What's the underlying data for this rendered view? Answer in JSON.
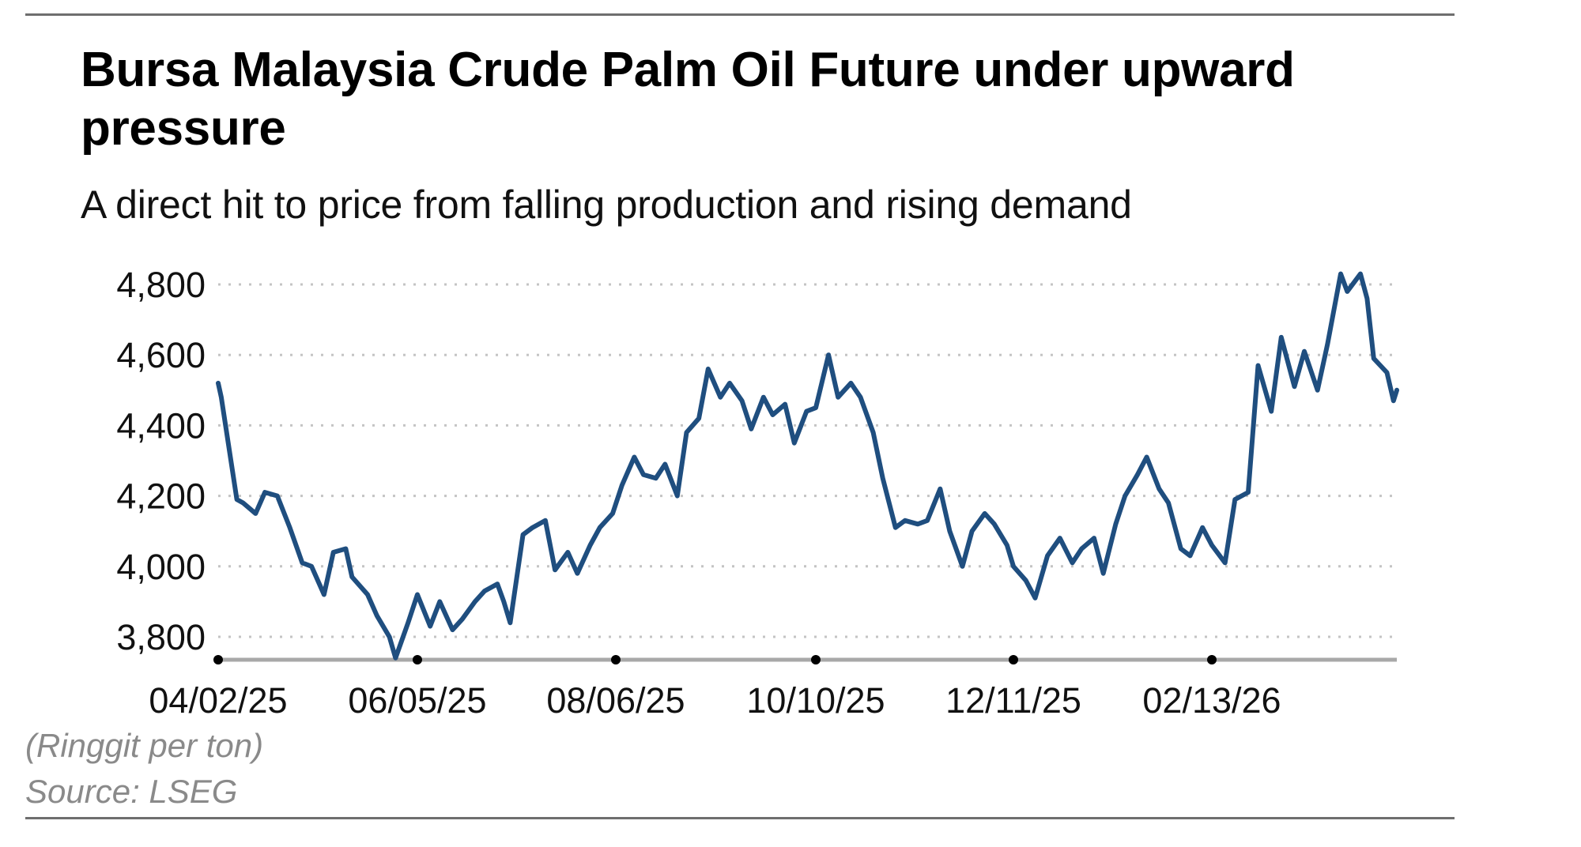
{
  "chart_data": {
    "type": "line",
    "title": "Bursa Malaysia Crude Palm Oil Future under upward pressure",
    "subtitle": "A direct hit to price from falling production and rising demand",
    "xlabel": "",
    "ylabel": "(Ringgit per ton)",
    "source": "Source: LSEG",
    "ylim": [
      3730,
      4840
    ],
    "grid": "horizontal dotted",
    "legend": "none",
    "line_color": "#1f4e7f",
    "y_ticks": [
      {
        "value": 4800,
        "label": "4,800"
      },
      {
        "value": 4600,
        "label": "4,600"
      },
      {
        "value": 4400,
        "label": "4,400"
      },
      {
        "value": 4200,
        "label": "4,200"
      },
      {
        "value": 4000,
        "label": "4,000"
      },
      {
        "value": 3800,
        "label": "3,800"
      }
    ],
    "x_ticks": [
      "04/02/25",
      "06/05/25",
      "08/06/25",
      "10/10/25",
      "12/11/25",
      "02/13/26"
    ],
    "series": [
      {
        "name": "Crude Palm Oil Future",
        "points": [
          {
            "date": "04/02/25",
            "value": 4520
          },
          {
            "date": "04/03/25",
            "value": 4480
          },
          {
            "date": "04/08/25",
            "value": 4190
          },
          {
            "date": "04/10/25",
            "value": 4180
          },
          {
            "date": "04/14/25",
            "value": 4150
          },
          {
            "date": "04/17/25",
            "value": 4210
          },
          {
            "date": "04/21/25",
            "value": 4200
          },
          {
            "date": "04/25/25",
            "value": 4110
          },
          {
            "date": "04/29/25",
            "value": 4010
          },
          {
            "date": "05/02/25",
            "value": 4000
          },
          {
            "date": "05/06/25",
            "value": 3920
          },
          {
            "date": "05/09/25",
            "value": 4040
          },
          {
            "date": "05/13/25",
            "value": 4050
          },
          {
            "date": "05/15/25",
            "value": 3970
          },
          {
            "date": "05/20/25",
            "value": 3920
          },
          {
            "date": "05/23/25",
            "value": 3860
          },
          {
            "date": "05/27/25",
            "value": 3800
          },
          {
            "date": "05/29/25",
            "value": 3740
          },
          {
            "date": "06/02/25",
            "value": 3840
          },
          {
            "date": "06/05/25",
            "value": 3920
          },
          {
            "date": "06/09/25",
            "value": 3830
          },
          {
            "date": "06/12/25",
            "value": 3900
          },
          {
            "date": "06/16/25",
            "value": 3820
          },
          {
            "date": "06/19/25",
            "value": 3850
          },
          {
            "date": "06/23/25",
            "value": 3900
          },
          {
            "date": "06/26/25",
            "value": 3930
          },
          {
            "date": "06/30/25",
            "value": 3950
          },
          {
            "date": "07/02/25",
            "value": 3900
          },
          {
            "date": "07/04/25",
            "value": 3840
          },
          {
            "date": "07/08/25",
            "value": 4090
          },
          {
            "date": "07/11/25",
            "value": 4110
          },
          {
            "date": "07/15/25",
            "value": 4130
          },
          {
            "date": "07/18/25",
            "value": 3990
          },
          {
            "date": "07/22/25",
            "value": 4040
          },
          {
            "date": "07/25/25",
            "value": 3980
          },
          {
            "date": "07/29/25",
            "value": 4060
          },
          {
            "date": "08/01/25",
            "value": 4110
          },
          {
            "date": "08/05/25",
            "value": 4150
          },
          {
            "date": "08/08/25",
            "value": 4230
          },
          {
            "date": "08/12/25",
            "value": 4310
          },
          {
            "date": "08/15/25",
            "value": 4260
          },
          {
            "date": "08/19/25",
            "value": 4250
          },
          {
            "date": "08/22/25",
            "value": 4290
          },
          {
            "date": "08/26/25",
            "value": 4200
          },
          {
            "date": "08/29/25",
            "value": 4380
          },
          {
            "date": "09/02/25",
            "value": 4420
          },
          {
            "date": "09/05/25",
            "value": 4560
          },
          {
            "date": "09/09/25",
            "value": 4480
          },
          {
            "date": "09/12/25",
            "value": 4520
          },
          {
            "date": "09/16/25",
            "value": 4470
          },
          {
            "date": "09/19/25",
            "value": 4390
          },
          {
            "date": "09/23/25",
            "value": 4480
          },
          {
            "date": "09/26/25",
            "value": 4430
          },
          {
            "date": "09/30/25",
            "value": 4460
          },
          {
            "date": "10/03/25",
            "value": 4350
          },
          {
            "date": "10/07/25",
            "value": 4440
          },
          {
            "date": "10/10/25",
            "value": 4450
          },
          {
            "date": "10/14/25",
            "value": 4600
          },
          {
            "date": "10/17/25",
            "value": 4480
          },
          {
            "date": "10/21/25",
            "value": 4520
          },
          {
            "date": "10/24/25",
            "value": 4480
          },
          {
            "date": "10/28/25",
            "value": 4380
          },
          {
            "date": "10/31/25",
            "value": 4250
          },
          {
            "date": "11/04/25",
            "value": 4110
          },
          {
            "date": "11/07/25",
            "value": 4130
          },
          {
            "date": "11/11/25",
            "value": 4120
          },
          {
            "date": "11/14/25",
            "value": 4130
          },
          {
            "date": "11/18/25",
            "value": 4220
          },
          {
            "date": "11/21/25",
            "value": 4100
          },
          {
            "date": "11/25/25",
            "value": 4000
          },
          {
            "date": "11/28/25",
            "value": 4100
          },
          {
            "date": "12/02/25",
            "value": 4150
          },
          {
            "date": "12/05/25",
            "value": 4120
          },
          {
            "date": "12/09/25",
            "value": 4060
          },
          {
            "date": "12/11/25",
            "value": 4000
          },
          {
            "date": "12/15/25",
            "value": 3960
          },
          {
            "date": "12/18/25",
            "value": 3910
          },
          {
            "date": "12/22/25",
            "value": 4030
          },
          {
            "date": "12/26/25",
            "value": 4080
          },
          {
            "date": "12/30/25",
            "value": 4010
          },
          {
            "date": "01/02/26",
            "value": 4050
          },
          {
            "date": "01/06/26",
            "value": 4080
          },
          {
            "date": "01/09/26",
            "value": 3980
          },
          {
            "date": "01/13/26",
            "value": 4120
          },
          {
            "date": "01/16/26",
            "value": 4200
          },
          {
            "date": "01/20/26",
            "value": 4260
          },
          {
            "date": "01/23/26",
            "value": 4310
          },
          {
            "date": "01/27/26",
            "value": 4220
          },
          {
            "date": "01/30/26",
            "value": 4180
          },
          {
            "date": "02/03/26",
            "value": 4050
          },
          {
            "date": "02/06/26",
            "value": 4030
          },
          {
            "date": "02/10/26",
            "value": 4110
          },
          {
            "date": "02/13/26",
            "value": 4060
          },
          {
            "date": "02/17/26",
            "value": 4010
          },
          {
            "date": "02/20/26",
            "value": 4190
          },
          {
            "date": "02/24/26",
            "value": 4210
          },
          {
            "date": "02/27/26",
            "value": 4570
          },
          {
            "date": "03/03/26",
            "value": 4440
          },
          {
            "date": "03/06/26",
            "value": 4650
          },
          {
            "date": "03/10/26",
            "value": 4510
          },
          {
            "date": "03/13/26",
            "value": 4610
          },
          {
            "date": "03/17/26",
            "value": 4500
          },
          {
            "date": "03/20/26",
            "value": 4630
          },
          {
            "date": "03/24/26",
            "value": 4830
          },
          {
            "date": "03/26/26",
            "value": 4780
          },
          {
            "date": "03/30/26",
            "value": 4830
          },
          {
            "date": "04/01/26",
            "value": 4760
          },
          {
            "date": "04/03/26",
            "value": 4590
          },
          {
            "date": "04/07/26",
            "value": 4550
          },
          {
            "date": "04/09/26",
            "value": 4470
          },
          {
            "date": "04/10/26",
            "value": 4500
          }
        ]
      }
    ]
  },
  "header": {
    "title": "Bursa Malaysia Crude Palm Oil Future under upward pressure",
    "subtitle": "A direct hit to price from falling production and rising demand"
  },
  "footer": {
    "unit_note": "(Ringgit per ton)",
    "source_note": "Source: LSEG"
  }
}
